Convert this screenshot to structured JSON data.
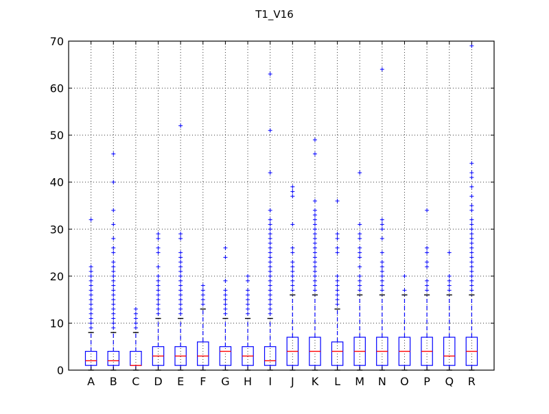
{
  "chart_data": {
    "type": "box",
    "title": "T1_V16",
    "xlabel": "",
    "ylabel": "",
    "ylim": [
      0,
      70
    ],
    "yticks": [
      0,
      10,
      20,
      30,
      40,
      50,
      60,
      70
    ],
    "grid": true,
    "categories": [
      "A",
      "B",
      "C",
      "D",
      "E",
      "F",
      "G",
      "H",
      "I",
      "J",
      "K",
      "L",
      "M",
      "N",
      "O",
      "P",
      "Q",
      "R"
    ],
    "boxes": [
      {
        "q1": 1,
        "median": 2,
        "q3": 4,
        "whisker_low": 0,
        "whisker_high": 8,
        "outliers": [
          9,
          10,
          11,
          12,
          13,
          14,
          15,
          16,
          17,
          18,
          19,
          20,
          21,
          22,
          32
        ]
      },
      {
        "q1": 1,
        "median": 2,
        "q3": 4,
        "whisker_low": 0,
        "whisker_high": 8,
        "outliers": [
          9,
          10,
          11,
          12,
          13,
          14,
          15,
          16,
          17,
          18,
          19,
          20,
          21,
          22,
          23,
          25,
          26,
          28,
          31,
          34,
          40,
          46
        ]
      },
      {
        "q1": 1,
        "median": 1,
        "q3": 4,
        "whisker_low": 0,
        "whisker_high": 8,
        "outliers": [
          9,
          10,
          11,
          12,
          13
        ]
      },
      {
        "q1": 1,
        "median": 3,
        "q3": 5,
        "whisker_low": 0,
        "whisker_high": 11,
        "outliers": [
          12,
          13,
          14,
          15,
          16,
          17,
          18,
          19,
          20,
          22,
          25,
          26,
          28,
          29
        ]
      },
      {
        "q1": 1,
        "median": 3,
        "q3": 5,
        "whisker_low": 0,
        "whisker_high": 11,
        "outliers": [
          12,
          13,
          14,
          15,
          16,
          17,
          18,
          19,
          20,
          21,
          22,
          23,
          24,
          25,
          28,
          29,
          52
        ]
      },
      {
        "q1": 1,
        "median": 3,
        "q3": 6,
        "whisker_low": 0,
        "whisker_high": 13,
        "outliers": [
          14,
          15,
          16,
          17,
          18
        ]
      },
      {
        "q1": 1,
        "median": 4,
        "q3": 5,
        "whisker_low": 0,
        "whisker_high": 11,
        "outliers": [
          12,
          13,
          14,
          15,
          16,
          17,
          19,
          24,
          26
        ]
      },
      {
        "q1": 1,
        "median": 3,
        "q3": 5,
        "whisker_low": 0,
        "whisker_high": 11,
        "outliers": [
          12,
          13,
          14,
          15,
          16,
          17,
          19,
          20
        ]
      },
      {
        "q1": 1,
        "median": 2,
        "q3": 5,
        "whisker_low": 0,
        "whisker_high": 11,
        "outliers": [
          12,
          13,
          14,
          15,
          16,
          17,
          18,
          19,
          20,
          21,
          22,
          23,
          24,
          25,
          26,
          27,
          28,
          29,
          30,
          31,
          32,
          34,
          42,
          51,
          63
        ]
      },
      {
        "q1": 1,
        "median": 4,
        "q3": 7,
        "whisker_low": 0,
        "whisker_high": 16,
        "outliers": [
          17,
          18,
          19,
          20,
          21,
          22,
          23,
          25,
          26,
          31,
          37,
          38,
          39
        ]
      },
      {
        "q1": 1,
        "median": 4,
        "q3": 7,
        "whisker_low": 0,
        "whisker_high": 16,
        "outliers": [
          17,
          18,
          19,
          20,
          21,
          22,
          23,
          24,
          25,
          26,
          27,
          28,
          29,
          30,
          31,
          32,
          33,
          34,
          36,
          46,
          49
        ]
      },
      {
        "q1": 1,
        "median": 4,
        "q3": 6,
        "whisker_low": 0,
        "whisker_high": 13,
        "outliers": [
          14,
          15,
          16,
          17,
          18,
          19,
          20,
          25,
          26,
          28,
          29,
          36
        ]
      },
      {
        "q1": 1,
        "median": 4,
        "q3": 7,
        "whisker_low": 0,
        "whisker_high": 16,
        "outliers": [
          17,
          18,
          19,
          20,
          22,
          24,
          25,
          26,
          28,
          29,
          31,
          42
        ]
      },
      {
        "q1": 1,
        "median": 4,
        "q3": 7,
        "whisker_low": 0,
        "whisker_high": 16,
        "outliers": [
          17,
          18,
          19,
          20,
          21,
          22,
          23,
          25,
          28,
          30,
          31,
          32,
          64
        ]
      },
      {
        "q1": 1,
        "median": 4,
        "q3": 7,
        "whisker_low": 0,
        "whisker_high": 16,
        "outliers": [
          17,
          20
        ]
      },
      {
        "q1": 1,
        "median": 4,
        "q3": 7,
        "whisker_low": 0,
        "whisker_high": 16,
        "outliers": [
          17,
          18,
          19,
          22,
          23,
          25,
          26,
          34
        ]
      },
      {
        "q1": 1,
        "median": 3,
        "q3": 7,
        "whisker_low": 0,
        "whisker_high": 16,
        "outliers": [
          17,
          18,
          19,
          20,
          25
        ]
      },
      {
        "q1": 1,
        "median": 4,
        "q3": 7,
        "whisker_low": 0,
        "whisker_high": 16,
        "outliers": [
          17,
          18,
          19,
          20,
          21,
          22,
          23,
          24,
          25,
          26,
          27,
          28,
          29,
          30,
          31,
          32,
          34,
          35,
          37,
          39,
          41,
          42,
          44,
          69
        ]
      }
    ],
    "colors": {
      "box": "#0000ff",
      "median": "#ff0000",
      "whisker_cap": "#000000",
      "outlier": "#0000ff",
      "grid": "#000000"
    }
  }
}
